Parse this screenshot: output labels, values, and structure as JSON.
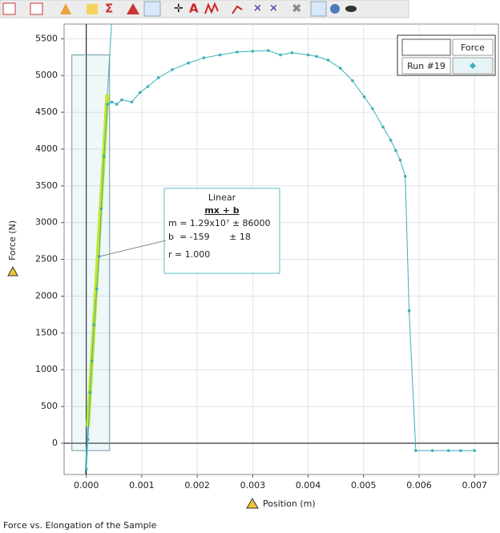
{
  "chart_data": {
    "type": "line",
    "x_label": "Position (m)",
    "y_label": "Force (N)",
    "caption": "Force vs. Elongation of the Sample",
    "legend_header": "Force",
    "x": [
      0,
      3e-05,
      7e-05,
      0.0001,
      0.00014,
      0.00019,
      0.00023,
      0.00027,
      0.00032,
      0.00038,
      0.00046,
      0.00055,
      0.00064,
      0.00082,
      0.00097,
      0.00111,
      0.0013,
      0.00155,
      0.00184,
      0.00212,
      0.00241,
      0.00272,
      0.003,
      0.00328,
      0.0035,
      0.00371,
      0.004,
      0.00415,
      0.00436,
      0.00458,
      0.0048,
      0.00501,
      0.00516,
      0.00535,
      0.00549,
      0.00558,
      0.00566,
      0.00575,
      0.00582,
      0.00594,
      0.00624,
      0.00653,
      0.00675,
      0.007
    ],
    "series": [
      {
        "name": "Run #19",
        "color": "#3ab0b8",
        "values": [
          -350,
          50,
          690,
          1120,
          1610,
          2100,
          2540,
          3190,
          3900,
          4610,
          4640,
          4610,
          4670,
          4640,
          4770,
          4850,
          4970,
          5080,
          5170,
          5240,
          5280,
          5320,
          5330,
          5340,
          5280,
          5310,
          5280,
          5260,
          5210,
          5100,
          4930,
          4710,
          4550,
          4300,
          4120,
          3980,
          3850,
          3630,
          1800,
          -100,
          -100,
          -100,
          -100,
          -100
        ]
      }
    ],
    "xlim": [
      -0.0004,
      0.00743
    ],
    "ylim": [
      -425,
      5700
    ],
    "xticks": [
      {
        "value": 0,
        "label": "0.000"
      },
      {
        "value": 0.001,
        "label": "0.001"
      },
      {
        "value": 0.002,
        "label": "0.002"
      },
      {
        "value": 0.003,
        "label": "0.003"
      },
      {
        "value": 0.004,
        "label": "0.004"
      },
      {
        "value": 0.005,
        "label": "0.005"
      },
      {
        "value": 0.006,
        "label": "0.006"
      },
      {
        "value": 0.007,
        "label": "0.007"
      }
    ],
    "yticks": [
      0,
      500,
      1000,
      1500,
      2000,
      2500,
      3000,
      3500,
      4000,
      4500,
      5000,
      5500
    ],
    "grid": true,
    "legend_position": "upper right",
    "selection": {
      "xlim": [
        -0.00026,
        0.00042
      ],
      "ylim": [
        -100,
        5280
      ]
    },
    "fit": {
      "title": "Linear",
      "equation": "mx + b",
      "m_label": "m = 1.29x10⁷ ± 86000",
      "b_label": "b  = -159       ± 18",
      "r_label": "r = 1.000",
      "slope": 12900000,
      "intercept": -159,
      "color": "#c8e62a"
    }
  }
}
